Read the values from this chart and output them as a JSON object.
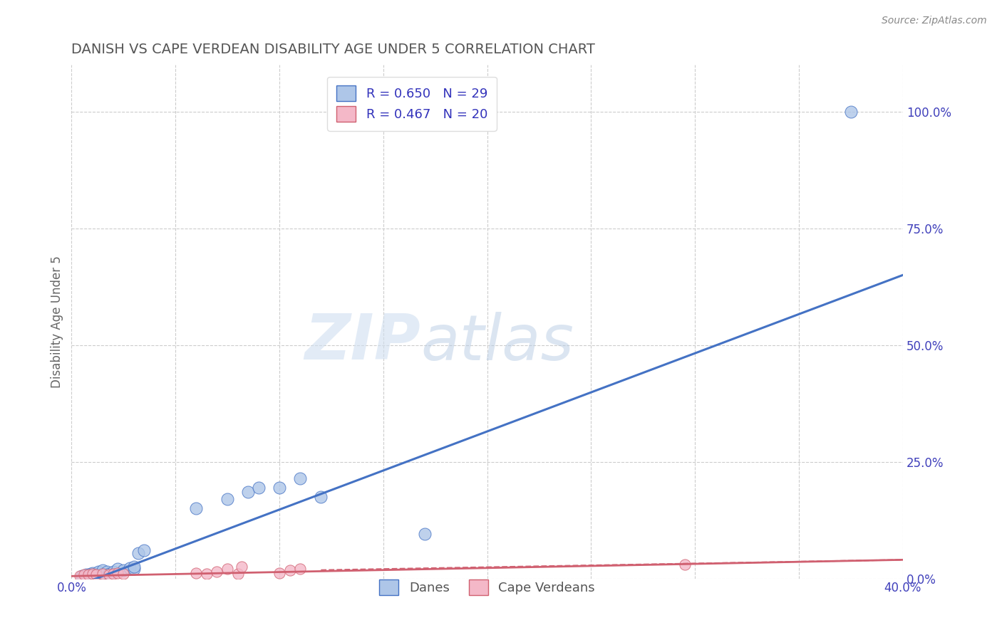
{
  "title": "DANISH VS CAPE VERDEAN DISABILITY AGE UNDER 5 CORRELATION CHART",
  "source_text": "Source: ZipAtlas.com",
  "ylabel": "Disability Age Under 5",
  "xlim": [
    0.0,
    0.4
  ],
  "ylim": [
    0.0,
    1.1
  ],
  "xticks": [
    0.0,
    0.05,
    0.1,
    0.15,
    0.2,
    0.25,
    0.3,
    0.35,
    0.4
  ],
  "yticks_right": [
    0.0,
    0.25,
    0.5,
    0.75,
    1.0
  ],
  "ytick_right_labels": [
    "0.0%",
    "25.0%",
    "50.0%",
    "75.0%",
    "100.0%"
  ],
  "dane_color": "#aec6e8",
  "dane_line_color": "#4472c4",
  "cape_color": "#f4b8c8",
  "cape_line_color": "#d06070",
  "dane_R": 0.65,
  "dane_N": 29,
  "cape_R": 0.467,
  "cape_N": 20,
  "legend_label_danes": "Danes",
  "legend_label_cape": "Cape Verdeans",
  "watermark_zip": "ZIP",
  "watermark_atlas": "atlas",
  "background_color": "#ffffff",
  "grid_color": "#cccccc",
  "title_color": "#555555",
  "axis_tick_color": "#4040bb",
  "legend_R_color": "#3333bb",
  "dane_scatter_x": [
    0.005,
    0.007,
    0.008,
    0.009,
    0.01,
    0.01,
    0.012,
    0.013,
    0.015,
    0.015,
    0.017,
    0.018,
    0.02,
    0.022,
    0.025,
    0.028,
    0.03,
    0.03,
    0.032,
    0.035,
    0.06,
    0.075,
    0.085,
    0.09,
    0.1,
    0.11,
    0.12,
    0.17,
    0.375
  ],
  "dane_scatter_y": [
    0.005,
    0.008,
    0.005,
    0.01,
    0.008,
    0.012,
    0.01,
    0.015,
    0.01,
    0.018,
    0.015,
    0.01,
    0.015,
    0.02,
    0.018,
    0.022,
    0.02,
    0.025,
    0.055,
    0.06,
    0.15,
    0.17,
    0.185,
    0.195,
    0.195,
    0.215,
    0.175,
    0.095,
    1.0
  ],
  "cape_scatter_x": [
    0.004,
    0.006,
    0.008,
    0.01,
    0.012,
    0.015,
    0.018,
    0.02,
    0.022,
    0.025,
    0.06,
    0.065,
    0.07,
    0.075,
    0.08,
    0.082,
    0.1,
    0.105,
    0.11,
    0.295
  ],
  "cape_scatter_y": [
    0.005,
    0.008,
    0.008,
    0.01,
    0.008,
    0.01,
    0.008,
    0.01,
    0.012,
    0.01,
    0.012,
    0.01,
    0.015,
    0.02,
    0.01,
    0.025,
    0.012,
    0.018,
    0.02,
    0.03
  ],
  "dane_line_x0": 0.0,
  "dane_line_y0": -0.02,
  "dane_line_x1": 0.4,
  "dane_line_y1": 0.65,
  "cape_line_x0": 0.0,
  "cape_line_y0": 0.005,
  "cape_line_x1": 0.4,
  "cape_line_y1": 0.04
}
